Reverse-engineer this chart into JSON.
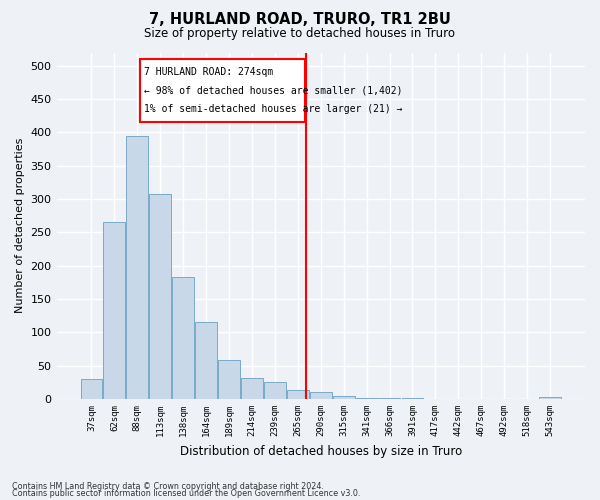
{
  "title": "7, HURLAND ROAD, TRURO, TR1 2BU",
  "subtitle": "Size of property relative to detached houses in Truro",
  "xlabel": "Distribution of detached houses by size in Truro",
  "ylabel": "Number of detached properties",
  "bar_color": "#c8d8e8",
  "bar_edge_color": "#7aaac8",
  "categories": [
    "37sqm",
    "62sqm",
    "88sqm",
    "113sqm",
    "138sqm",
    "164sqm",
    "189sqm",
    "214sqm",
    "239sqm",
    "265sqm",
    "290sqm",
    "315sqm",
    "341sqm",
    "366sqm",
    "391sqm",
    "417sqm",
    "442sqm",
    "467sqm",
    "492sqm",
    "518sqm",
    "543sqm"
  ],
  "values": [
    30,
    265,
    395,
    308,
    183,
    115,
    58,
    32,
    25,
    14,
    10,
    5,
    1,
    1,
    1,
    0,
    0,
    0,
    0,
    0,
    3
  ],
  "ylim": [
    0,
    520
  ],
  "yticks": [
    0,
    50,
    100,
    150,
    200,
    250,
    300,
    350,
    400,
    450,
    500
  ],
  "annotation_line1": "7 HURLAND ROAD: 274sqm",
  "annotation_line2": "← 98% of detached houses are smaller (1,402)",
  "annotation_line3": "1% of semi-detached houses are larger (21) →",
  "footer1": "Contains HM Land Registry data © Crown copyright and database right 2024.",
  "footer2": "Contains public sector information licensed under the Open Government Licence v3.0.",
  "bg_color": "#eef2f7",
  "grid_color": "#ffffff"
}
